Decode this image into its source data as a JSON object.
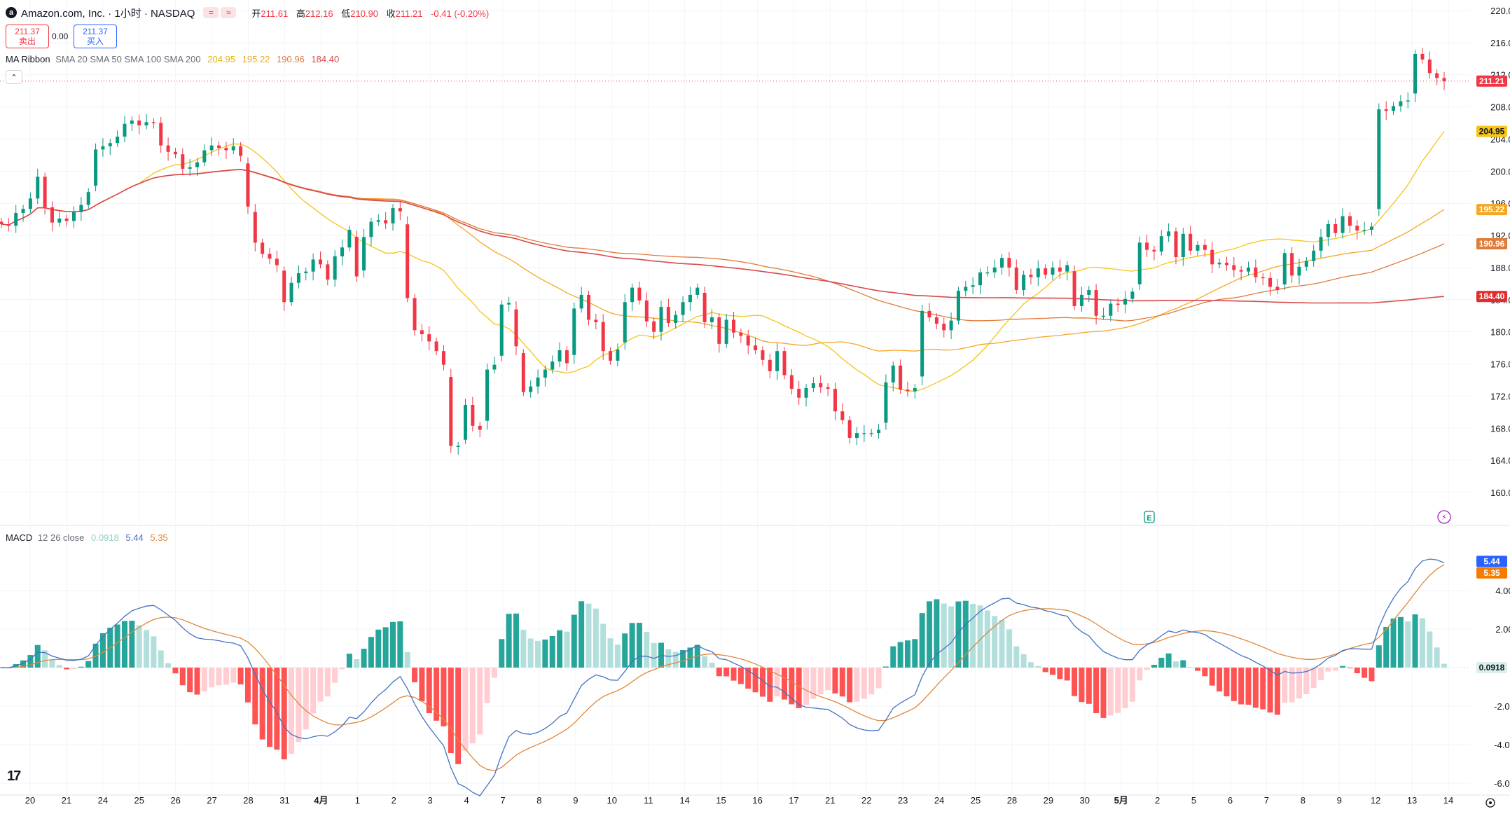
{
  "header": {
    "logo_letter": "a",
    "symbol_title": "Amazon.com, Inc. · 1小时 · NASDAQ",
    "tool_icon_1": "=",
    "tool_icon_2": "≈",
    "open_label": "开",
    "open_value": "211.61",
    "high_label": "高",
    "high_value": "212.16",
    "low_label": "低",
    "low_value": "210.90",
    "close_label": "收",
    "close_value": "211.21",
    "change": "-0.41 (-0.20%)"
  },
  "trade": {
    "sell_price": "211.37",
    "sell_label": "卖出",
    "spread": "0.00",
    "buy_price": "211.37",
    "buy_label": "买入"
  },
  "ma_ribbon": {
    "name": "MA Ribbon",
    "params": "SMA 20 SMA 50 SMA 100 SMA 200",
    "values": [
      "204.95",
      "195.22",
      "190.96",
      "184.40"
    ],
    "colors": [
      "#f5c518",
      "#f5a623",
      "#e07b39",
      "#d84a4a"
    ]
  },
  "macd": {
    "name": "MACD",
    "params": "12 26 close",
    "hist": "0.0918",
    "macd": "5.44",
    "signal": "5.35",
    "colors": {
      "hist": "#a8dcd1",
      "macd": "#4472c4",
      "signal": "#e0873a"
    }
  },
  "price_axis": {
    "ticks": [
      "220.00",
      "216.00",
      "212.00",
      "208.00",
      "204.00",
      "200.00",
      "196.00",
      "192.00",
      "188.00",
      "184.00",
      "180.00",
      "176.00",
      "172.00",
      "168.00",
      "164.00",
      "160.00"
    ],
    "last_price": "211.21",
    "badges": [
      {
        "text": "204.95",
        "color": "#f5c518"
      },
      {
        "text": "195.22",
        "color": "#f5a623"
      },
      {
        "text": "190.96",
        "color": "#e07b39"
      },
      {
        "text": "184.40",
        "color": "#e02e2e"
      }
    ]
  },
  "macd_axis": {
    "ticks": [
      "4.00",
      "2.00",
      "0.0918",
      "-2.00",
      "-4.00",
      "-6.00"
    ],
    "badges": [
      {
        "text": "5.44",
        "color": "#2962ff"
      },
      {
        "text": "5.35",
        "color": "#f57c00"
      }
    ]
  },
  "time_axis": {
    "labels": [
      "20",
      "21",
      "24",
      "25",
      "26",
      "27",
      "28",
      "31",
      "4月",
      "1",
      "2",
      "3",
      "4",
      "7",
      "8",
      "9",
      "10",
      "11",
      "14",
      "15",
      "16",
      "17",
      "21",
      "22",
      "23",
      "24",
      "25",
      "28",
      "29",
      "30",
      "5月",
      "2",
      "5",
      "6",
      "7",
      "8",
      "9",
      "12",
      "13",
      "14"
    ]
  },
  "markers": {
    "earnings": "E",
    "dividend": "⚡"
  },
  "colors": {
    "up": "#089981",
    "down": "#f23645",
    "grid": "#f0f3fa",
    "axis_text": "#131722"
  },
  "chart_data": {
    "type": "candlestick",
    "title": "Amazon.com, Inc. · 1小时 · NASDAQ",
    "ylim": [
      158,
      222
    ],
    "x_labels": [
      "20",
      "21",
      "24",
      "25",
      "26",
      "27",
      "28",
      "31",
      "4月",
      "1",
      "2",
      "3",
      "4",
      "7",
      "8",
      "9",
      "10",
      "11",
      "14",
      "15",
      "16",
      "17",
      "21",
      "22",
      "23",
      "24",
      "25",
      "28",
      "29",
      "30",
      "5月",
      "2",
      "5",
      "6",
      "7",
      "8",
      "9",
      "12",
      "13",
      "14"
    ],
    "closes": [
      193.4,
      193.2,
      194.8,
      195.3,
      196.6,
      199.3,
      195.5,
      193.6,
      194.1,
      193.8,
      194.9,
      195.8,
      197.4,
      202.7,
      203.1,
      203.5,
      204.3,
      205.9,
      206.3,
      205.7,
      206.1,
      206.0,
      203.2,
      202.4,
      202.1,
      200.3,
      200.5,
      201.1,
      202.6,
      203.2,
      202.9,
      202.6,
      203.1,
      201.9,
      195.6,
      191.1,
      189.7,
      189.1,
      188.3,
      183.7,
      186.1,
      187.3,
      187.5,
      189.0,
      188.4,
      186.5,
      189.4,
      190.5,
      192.7,
      186.9,
      191.8,
      193.7,
      193.9,
      193.5,
      195.4,
      195.0,
      184.2,
      180.2,
      179.7,
      178.8,
      177.6,
      175.9,
      165.8,
      165.8,
      170.9,
      168.3,
      167.8,
      175.3,
      175.9,
      183.4,
      183.6,
      178.2,
      172.5,
      173.2,
      174.3,
      175.3,
      176.3,
      177.7,
      176.1,
      182.9,
      184.6,
      181.5,
      181.2,
      177.6,
      176.4,
      177.8,
      183.7,
      185.5,
      183.9,
      181.3,
      180.0,
      183.1,
      181.1,
      182.1,
      183.7,
      184.6,
      185.5,
      181.2,
      181.8,
      178.5,
      181.5,
      179.9,
      179.5,
      178.3,
      177.7,
      176.5,
      175.1,
      177.6,
      174.6,
      172.9,
      171.8,
      173.0,
      173.6,
      173.1,
      172.9,
      170.1,
      169.0,
      166.8,
      167.4,
      167.4,
      167.4,
      167.8,
      173.7,
      175.8,
      172.8,
      172.6,
      173.0,
      182.6,
      181.8,
      181.0,
      180.2,
      181.4,
      185.1,
      185.6,
      185.8,
      187.4,
      187.4,
      188.0,
      189.2,
      188.0,
      185.2,
      187.1,
      186.8,
      187.9,
      187.1,
      188.0,
      187.5,
      188.3,
      183.2,
      184.6,
      185.2,
      182.0,
      182.0,
      183.5,
      183.4,
      184.1,
      185.0,
      191.1,
      190.2,
      190.0,
      191.9,
      192.5,
      189.3,
      192.2,
      190.1,
      190.8,
      190.2,
      188.4,
      188.6,
      188.3,
      187.7,
      187.5,
      188.0,
      186.8,
      186.7,
      185.6,
      185.2,
      189.8,
      187.0,
      188.1,
      188.8,
      190.1,
      191.8,
      193.4,
      192.3,
      194.4,
      193.2,
      192.6,
      192.7,
      193.1,
      207.7,
      207.5,
      208.1,
      208.7,
      208.8,
      214.6,
      213.9,
      212.2,
      211.6,
      211.2
    ],
    "series": [
      {
        "name": "SMA 20",
        "last": 204.95
      },
      {
        "name": "SMA 50",
        "last": 195.22
      },
      {
        "name": "SMA 100",
        "last": 190.96
      },
      {
        "name": "SMA 200",
        "last": 184.4
      }
    ]
  }
}
